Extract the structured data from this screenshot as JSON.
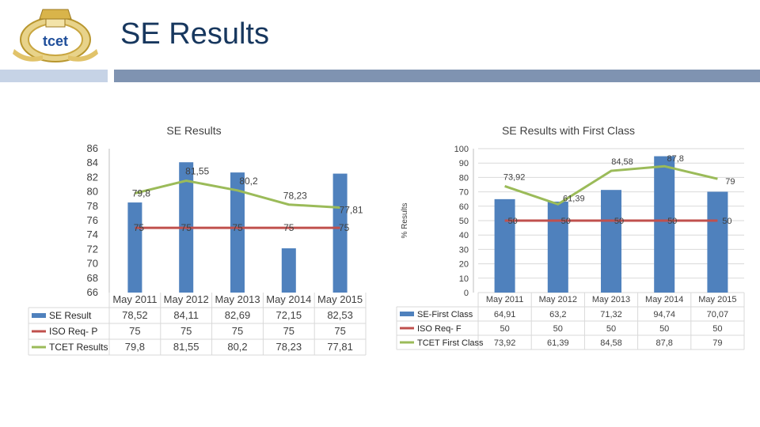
{
  "page": {
    "title": "SE Results",
    "logo_text": "tcet"
  },
  "colors": {
    "title": "#17375e",
    "bar": "#4f81bd",
    "iso": "#c0504d",
    "tcet": "#9bbb59",
    "grid": "#d9d9d9",
    "accent_left": "#c6d3e6",
    "accent_right": "#7f93b1"
  },
  "chart_data": [
    {
      "type": "bar",
      "title": "SE Results",
      "categories": [
        "May 2011",
        "May 2012",
        "May 2013",
        "May 2014",
        "May 2015"
      ],
      "ylim": [
        66,
        86
      ],
      "yticks": [
        "86",
        "84",
        "82",
        "80",
        "78",
        "76",
        "74",
        "72",
        "70",
        "68",
        "66"
      ],
      "ylabel": "",
      "grid": false,
      "series": [
        {
          "name": "SE Result",
          "kind": "bar",
          "values": [
            78.52,
            84.11,
            82.69,
            72.15,
            82.53
          ],
          "table": [
            "78,52",
            "84,11",
            "82,69",
            "72,15",
            "82,53"
          ],
          "labels": [
            "",
            "",
            "",
            "",
            ""
          ]
        },
        {
          "name": "ISO Req- P",
          "kind": "line",
          "values": [
            75,
            75,
            75,
            75,
            75
          ],
          "table": [
            "75",
            "75",
            "75",
            "75",
            "75"
          ],
          "labels": [
            "75",
            "75",
            "75",
            "75",
            "75"
          ]
        },
        {
          "name": "TCET Results",
          "kind": "line",
          "values": [
            79.8,
            81.55,
            80.2,
            78.23,
            77.81
          ],
          "table": [
            "79,8",
            "81,55",
            "80,2",
            "78,23",
            "77,81"
          ],
          "labels": [
            "79,8",
            "81,55",
            "80,2",
            "78,23",
            "77,81"
          ]
        }
      ]
    },
    {
      "type": "bar",
      "title": "SE Results with First Class",
      "categories": [
        "May 2011",
        "May 2012",
        "May 2013",
        "May 2014",
        "May 2015"
      ],
      "ylim": [
        0,
        100
      ],
      "yticks": [
        "100",
        "90",
        "80",
        "70",
        "60",
        "50",
        "40",
        "30",
        "20",
        "10",
        "0"
      ],
      "ylabel": "% Results",
      "grid": true,
      "series": [
        {
          "name": "SE-First Class",
          "kind": "bar",
          "values": [
            64.91,
            63.2,
            71.32,
            94.74,
            70.07
          ],
          "table": [
            "64,91",
            "63,2",
            "71,32",
            "94,74",
            "70,07"
          ],
          "labels": [
            "",
            "",
            "",
            "",
            ""
          ]
        },
        {
          "name": "ISO Req- F",
          "kind": "line",
          "values": [
            50,
            50,
            50,
            50,
            50
          ],
          "table": [
            "50",
            "50",
            "50",
            "50",
            "50"
          ],
          "labels": [
            "50",
            "50",
            "50",
            "50",
            "50"
          ]
        },
        {
          "name": "TCET First Class",
          "kind": "line",
          "values": [
            73.92,
            61.39,
            84.58,
            87.8,
            79
          ],
          "table": [
            "73,92",
            "61,39",
            "84,58",
            "87,8",
            "79"
          ],
          "labels": [
            "73,92",
            "61,39",
            "84,58",
            "87,8",
            "79"
          ]
        }
      ]
    }
  ]
}
